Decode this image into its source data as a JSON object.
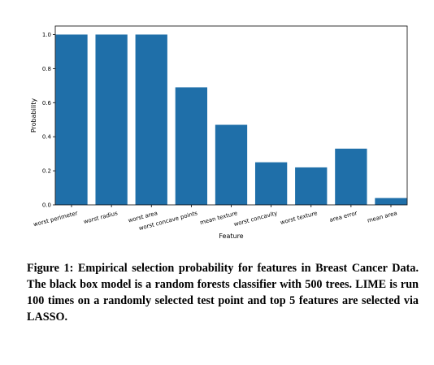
{
  "chart_data": {
    "type": "bar",
    "xlabel": "Feature",
    "ylabel": "Probability",
    "ylim": [
      0,
      1.05
    ],
    "yticks": [
      "0.0",
      "0.2",
      "0.4",
      "0.6",
      "0.8",
      "1.0"
    ],
    "categories": [
      "worst perimeter",
      "worst radius",
      "worst area",
      "worst concave points",
      "mean texture",
      "worst concavity",
      "worst texture",
      "area error",
      "mean area"
    ],
    "values": [
      1.0,
      1.0,
      1.0,
      0.69,
      0.47,
      0.25,
      0.22,
      0.33,
      0.04
    ],
    "bar_color": "#1f6fa9",
    "grid": false
  },
  "caption": {
    "text": "Figure 1: Empirical selection probability for features in Breast Cancer Data. The black box model is a random forests classifier with 500 trees. LIME is run 100 times on a randomly selected test point and top 5 features are selected via LASSO."
  }
}
